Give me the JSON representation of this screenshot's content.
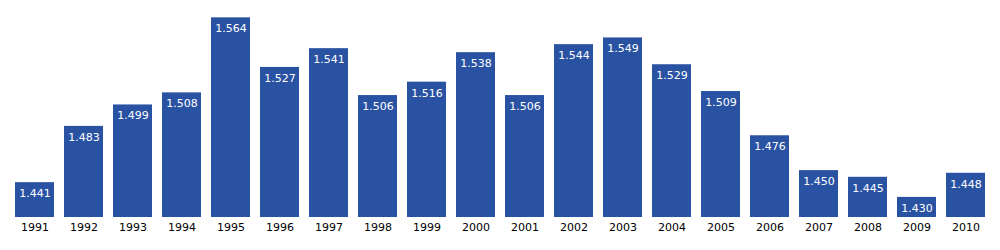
{
  "chart_data": {
    "type": "bar",
    "categories": [
      "1991",
      "1992",
      "1993",
      "1994",
      "1995",
      "1996",
      "1997",
      "1998",
      "1999",
      "2000",
      "2001",
      "2002",
      "2003",
      "2004",
      "2005",
      "2006",
      "2007",
      "2008",
      "2009",
      "2010"
    ],
    "values": [
      1.441,
      1.483,
      1.499,
      1.508,
      1.564,
      1.527,
      1.541,
      1.506,
      1.516,
      1.538,
      1.506,
      1.544,
      1.549,
      1.529,
      1.509,
      1.476,
      1.45,
      1.445,
      1.43,
      1.448
    ],
    "value_labels": [
      "1.441",
      "1.483",
      "1.499",
      "1.508",
      "1.564",
      "1.527",
      "1.541",
      "1.506",
      "1.516",
      "1.538",
      "1.506",
      "1.544",
      "1.549",
      "1.529",
      "1.509",
      "1.476",
      "1.450",
      "1.445",
      "1.430",
      "1.448"
    ],
    "color": "#2a52a3",
    "ylim": [
      1.415,
      1.565
    ],
    "data_labels": true,
    "tick_labels": "x",
    "grid": false
  }
}
